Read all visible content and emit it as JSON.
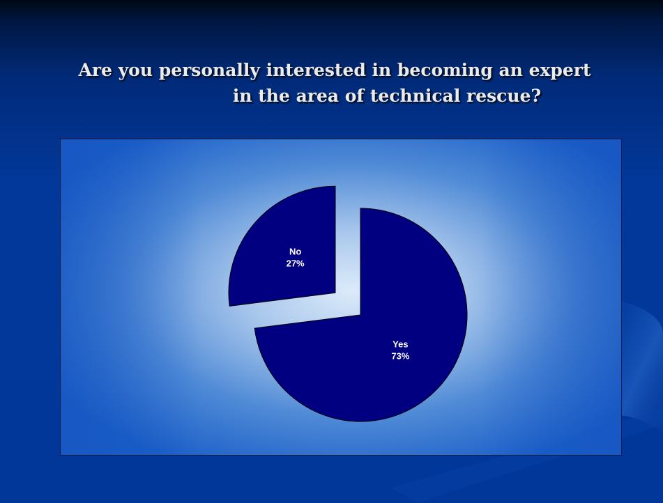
{
  "slide": {
    "title_line_1": "Are you personally interested in becoming an expert",
    "title_line_2": "in the area of technical rescue?"
  },
  "colors": {
    "slice_fill": "#000080",
    "slice_stroke": "#000000",
    "label_color": "#ffffff"
  },
  "chart_data": {
    "type": "pie",
    "categories": [
      "Yes",
      "No"
    ],
    "values": [
      73,
      27
    ],
    "labels": [
      {
        "category": "Yes",
        "percent": "73%"
      },
      {
        "category": "No",
        "percent": "27%"
      }
    ],
    "exploded": true,
    "legend": "none"
  }
}
